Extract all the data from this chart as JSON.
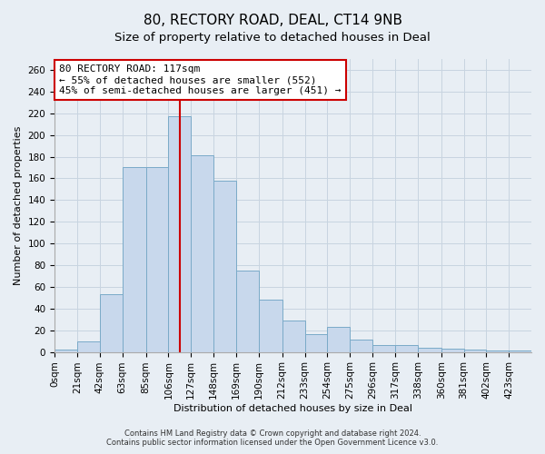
{
  "title": "80, RECTORY ROAD, DEAL, CT14 9NB",
  "subtitle": "Size of property relative to detached houses in Deal",
  "xlabel": "Distribution of detached houses by size in Deal",
  "ylabel": "Number of detached properties",
  "bin_labels": [
    "0sqm",
    "21sqm",
    "42sqm",
    "63sqm",
    "85sqm",
    "106sqm",
    "127sqm",
    "148sqm",
    "169sqm",
    "190sqm",
    "212sqm",
    "233sqm",
    "254sqm",
    "275sqm",
    "296sqm",
    "317sqm",
    "338sqm",
    "360sqm",
    "381sqm",
    "402sqm",
    "423sqm"
  ],
  "bin_edges": [
    0,
    21,
    42,
    63,
    85,
    106,
    127,
    148,
    169,
    190,
    212,
    233,
    254,
    275,
    296,
    317,
    338,
    360,
    381,
    402,
    423,
    444
  ],
  "bar_heights": [
    2,
    10,
    53,
    170,
    170,
    217,
    181,
    158,
    75,
    48,
    29,
    16,
    23,
    11,
    6,
    6,
    4,
    3,
    2,
    1,
    1
  ],
  "bar_color": "#c8d8ec",
  "bar_edge_color": "#7aaac8",
  "property_value": 117,
  "vline_color": "#cc0000",
  "annotation_text": "80 RECTORY ROAD: 117sqm\n← 55% of detached houses are smaller (552)\n45% of semi-detached houses are larger (451) →",
  "annotation_box_color": "#ffffff",
  "annotation_box_edge": "#cc0000",
  "ylim": [
    0,
    270
  ],
  "yticks": [
    0,
    20,
    40,
    60,
    80,
    100,
    120,
    140,
    160,
    180,
    200,
    220,
    240,
    260
  ],
  "grid_color": "#c8d4e0",
  "background_color": "#e8eef4",
  "footer_line1": "Contains HM Land Registry data © Crown copyright and database right 2024.",
  "footer_line2": "Contains public sector information licensed under the Open Government Licence v3.0.",
  "title_fontsize": 11,
  "subtitle_fontsize": 9.5,
  "axis_label_fontsize": 8,
  "tick_fontsize": 7.5,
  "annotation_fontsize": 8
}
